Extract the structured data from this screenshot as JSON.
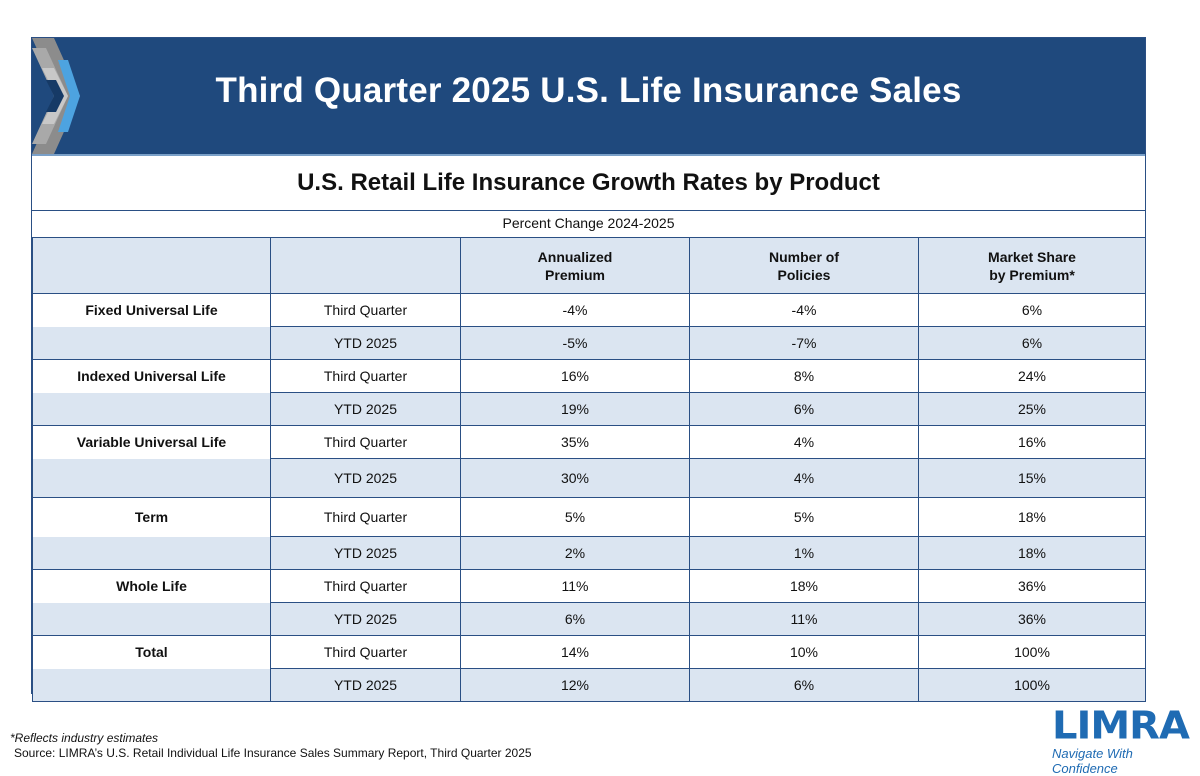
{
  "banner": {
    "title": "Third Quarter 2025 U.S. Life Insurance Sales"
  },
  "subtitle": "U.S. Retail Life Insurance Growth Rates by Product",
  "period_label": "Percent Change 2024-2025",
  "headers": {
    "col3_line1": "Annualized",
    "col3_line2": "Premium",
    "col4_line1": "Number of",
    "col4_line2": "Policies",
    "col5_line1": "Market Share",
    "col5_line2": "by Premium*"
  },
  "rows": [
    {
      "product": "Fixed Universal Life",
      "period": "Third Quarter",
      "premium": "-4%",
      "policies": "-4%",
      "share": "6%"
    },
    {
      "product": "",
      "period": "YTD 2025",
      "premium": "-5%",
      "policies": "-7%",
      "share": "6%"
    },
    {
      "product": "Indexed Universal Life",
      "period": "Third Quarter",
      "premium": "16%",
      "policies": "8%",
      "share": "24%"
    },
    {
      "product": "",
      "period": "YTD 2025",
      "premium": "19%",
      "policies": "6%",
      "share": "25%"
    },
    {
      "product": "Variable Universal Life",
      "period": "Third Quarter",
      "premium": "35%",
      "policies": "4%",
      "share": "16%"
    },
    {
      "product": "",
      "period": "YTD 2025",
      "premium": "30%",
      "policies": "4%",
      "share": "15%"
    },
    {
      "product": "Term",
      "period": "Third Quarter",
      "premium": "5%",
      "policies": "5%",
      "share": "18%"
    },
    {
      "product": "",
      "period": "YTD 2025",
      "premium": "2%",
      "policies": "1%",
      "share": "18%"
    },
    {
      "product": "Whole Life",
      "period": "Third Quarter",
      "premium": "11%",
      "policies": "18%",
      "share": "36%"
    },
    {
      "product": "",
      "period": "YTD 2025",
      "premium": "6%",
      "policies": "11%",
      "share": "36%"
    },
    {
      "product": "Total",
      "period": "Third Quarter",
      "premium": "14%",
      "policies": "10%",
      "share": "100%"
    },
    {
      "product": "",
      "period": "YTD 2025",
      "premium": "12%",
      "policies": "6%",
      "share": "100%"
    }
  ],
  "footnote": "*Reflects industry estimates",
  "source": "Source: LIMRA’s U.S. Retail Individual Life Insurance Sales Summary Report, Third Quarter 2025",
  "logo": {
    "name": "LIMRA",
    "tagline": "Navigate With Confidence"
  },
  "colors": {
    "banner": "#1f497d",
    "band": "#dbe5f1",
    "brand": "#1f6bb3"
  }
}
